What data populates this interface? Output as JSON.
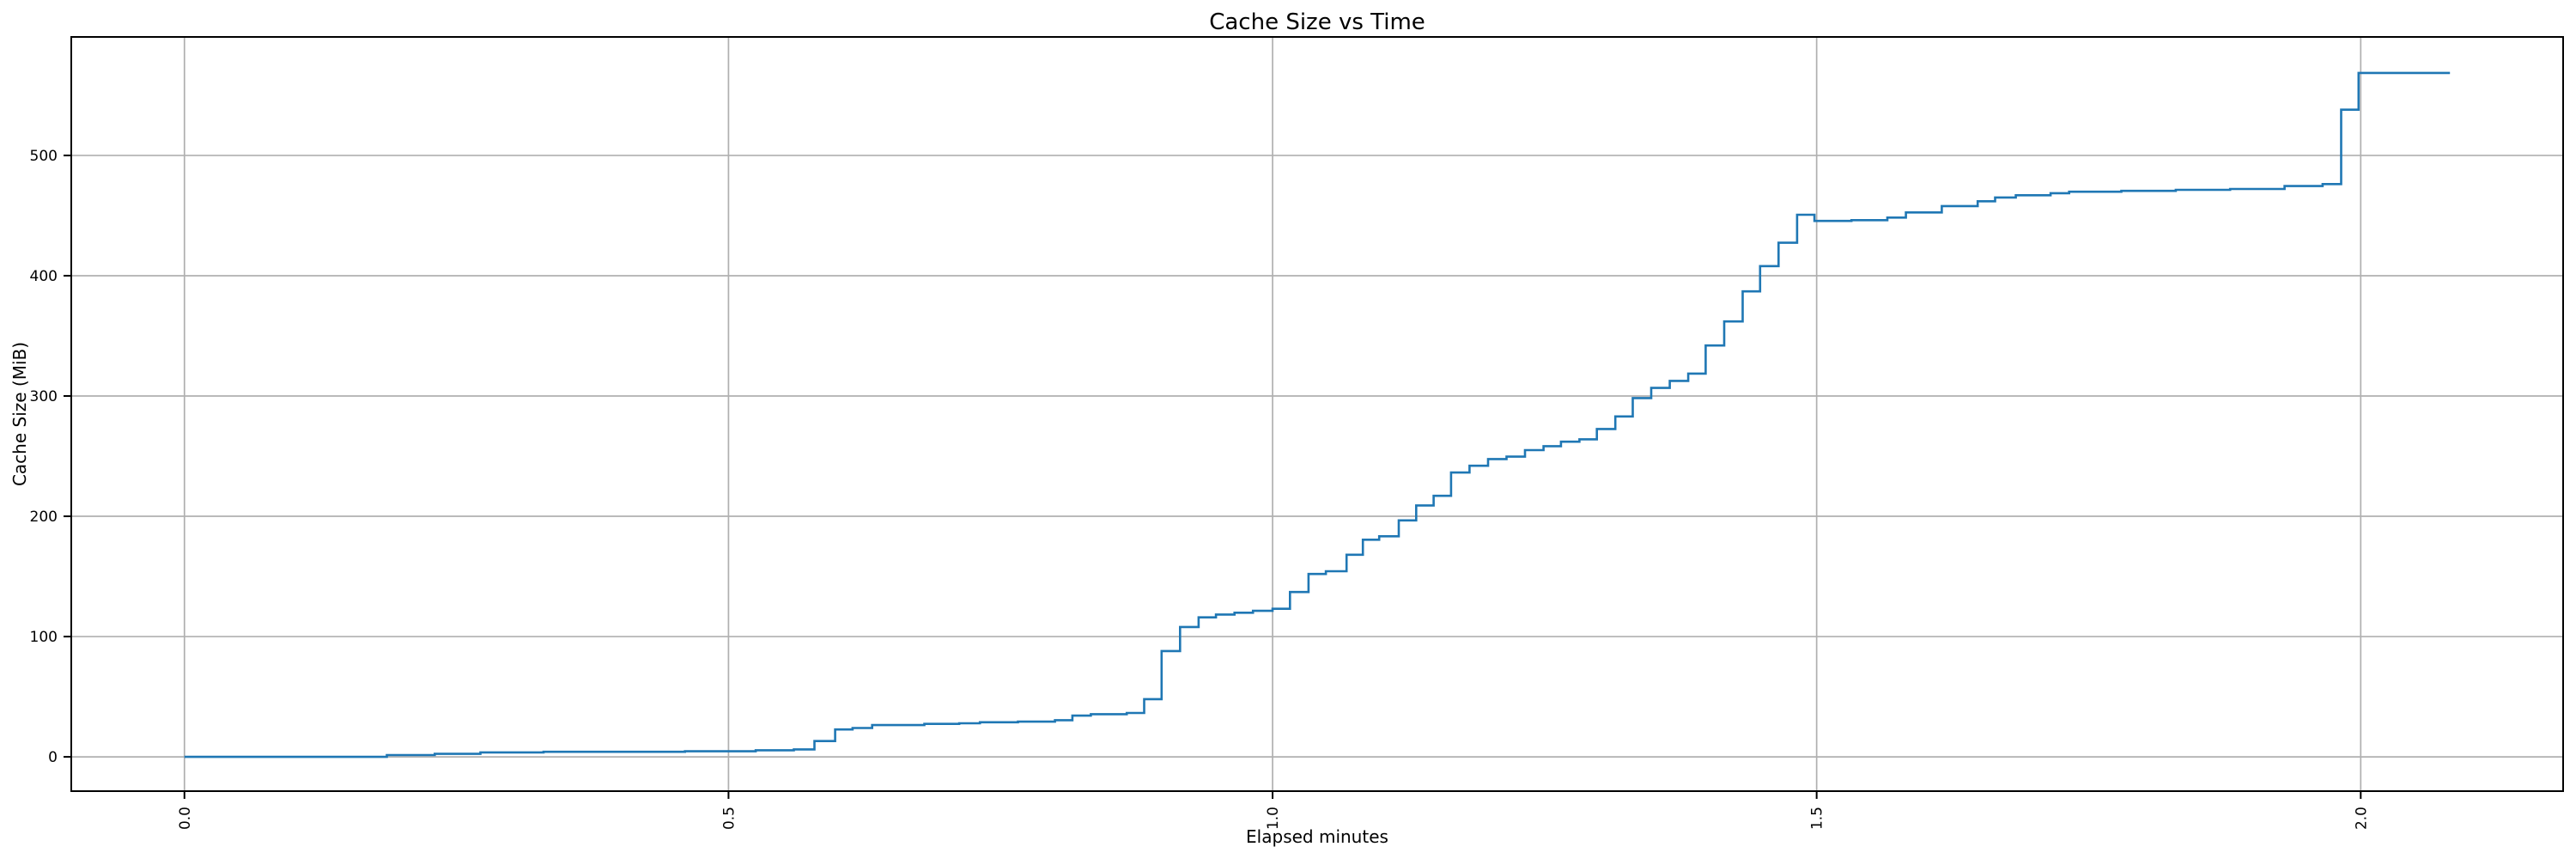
{
  "page": {
    "title": "Cache Size vs Time"
  },
  "chart_data": {
    "type": "line",
    "step_mode": "post",
    "title": "Cache Size vs Time",
    "xlabel": "Elapsed minutes",
    "ylabel": "Cache Size (MiB)",
    "xlim": [
      -0.104,
      2.186
    ],
    "ylim": [
      -28.5,
      598.5
    ],
    "grid": true,
    "legend_position": "none",
    "x_tick_rotation": 90,
    "x_ticks": [
      {
        "value": 0.0,
        "label": "0.0"
      },
      {
        "value": 0.5,
        "label": "0.5"
      },
      {
        "value": 1.0,
        "label": "1.0"
      },
      {
        "value": 1.5,
        "label": "1.5"
      },
      {
        "value": 2.0,
        "label": "2.0"
      }
    ],
    "y_ticks": [
      {
        "value": 0,
        "label": "0"
      },
      {
        "value": 100,
        "label": "100"
      },
      {
        "value": 200,
        "label": "200"
      },
      {
        "value": 300,
        "label": "300"
      },
      {
        "value": 400,
        "label": "400"
      },
      {
        "value": 500,
        "label": "500"
      }
    ],
    "colors": {
      "line": "#1f77b4",
      "grid": "#b0b0b0",
      "spine": "#000000",
      "text": "#000000",
      "background": "#ffffff"
    },
    "series": [
      {
        "name": "Cache Size",
        "points": [
          [
            0.0,
            0
          ],
          [
            0.186,
            1.5
          ],
          [
            0.23,
            2.5
          ],
          [
            0.272,
            3.7
          ],
          [
            0.33,
            4.2
          ],
          [
            0.46,
            4.6
          ],
          [
            0.525,
            5.5
          ],
          [
            0.56,
            6.2
          ],
          [
            0.579,
            13.1
          ],
          [
            0.598,
            22.8
          ],
          [
            0.614,
            24.0
          ],
          [
            0.632,
            26.4
          ],
          [
            0.68,
            27.4
          ],
          [
            0.712,
            27.9
          ],
          [
            0.731,
            28.8
          ],
          [
            0.766,
            29.3
          ],
          [
            0.8,
            30.5
          ],
          [
            0.816,
            34.3
          ],
          [
            0.833,
            35.5
          ],
          [
            0.866,
            36.5
          ],
          [
            0.882,
            48
          ],
          [
            0.898,
            88
          ],
          [
            0.915,
            108
          ],
          [
            0.932,
            116
          ],
          [
            0.948,
            118.3
          ],
          [
            0.965,
            119.8
          ],
          [
            0.982,
            121.4
          ],
          [
            1.0,
            123.1
          ],
          [
            1.016,
            137
          ],
          [
            1.033,
            152
          ],
          [
            1.049,
            154.3
          ],
          [
            1.068,
            168
          ],
          [
            1.083,
            180.5
          ],
          [
            1.098,
            183.4
          ],
          [
            1.116,
            196.6
          ],
          [
            1.132,
            209
          ],
          [
            1.148,
            217
          ],
          [
            1.164,
            236.4
          ],
          [
            1.181,
            242
          ],
          [
            1.198,
            247.6
          ],
          [
            1.215,
            249.6
          ],
          [
            1.232,
            255
          ],
          [
            1.249,
            258.3
          ],
          [
            1.265,
            262
          ],
          [
            1.282,
            264
          ],
          [
            1.298,
            272.6
          ],
          [
            1.315,
            283
          ],
          [
            1.331,
            298.3
          ],
          [
            1.348,
            306.7
          ],
          [
            1.365,
            312.6
          ],
          [
            1.382,
            318.6
          ],
          [
            1.398,
            342
          ],
          [
            1.415,
            362
          ],
          [
            1.432,
            387
          ],
          [
            1.448,
            408
          ],
          [
            1.465,
            427.4
          ],
          [
            1.482,
            450.7
          ],
          [
            1.498,
            445.5
          ],
          [
            1.532,
            446.2
          ],
          [
            1.565,
            448.3
          ],
          [
            1.582,
            452.6
          ],
          [
            1.615,
            457.9
          ],
          [
            1.648,
            461.9
          ],
          [
            1.664,
            465.0
          ],
          [
            1.683,
            466.9
          ],
          [
            1.715,
            468.6
          ],
          [
            1.732,
            469.8
          ],
          [
            1.78,
            470.5
          ],
          [
            1.83,
            471.4
          ],
          [
            1.88,
            472.1
          ],
          [
            1.93,
            474.5
          ],
          [
            1.965,
            476.2
          ],
          [
            1.982,
            538
          ],
          [
            1.998,
            568.6
          ],
          [
            2.082,
            568.6
          ]
        ]
      }
    ]
  }
}
